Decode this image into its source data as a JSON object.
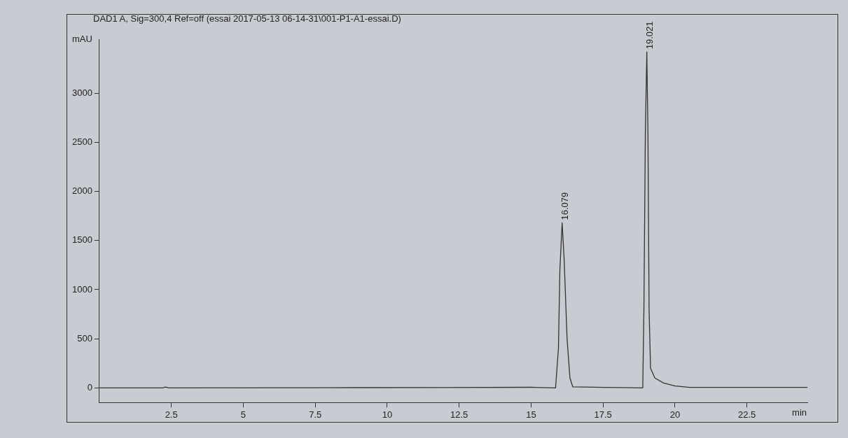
{
  "chart_data": {
    "type": "line",
    "title": "DAD1 A, Sig=300,4 Ref=off (essai 2017-05-13 06-14-31\\001-P1-A1-essai.D)",
    "xlabel": "min",
    "ylabel": "mAU",
    "x": [
      0,
      2.2,
      2.3,
      2.4,
      8,
      12,
      15,
      15.85,
      15.95,
      16.0,
      16.079,
      16.15,
      16.25,
      16.35,
      16.45,
      17.5,
      18.88,
      18.92,
      18.97,
      19.021,
      19.06,
      19.1,
      19.15,
      19.3,
      19.6,
      20.0,
      20.5,
      22.5,
      24.6
    ],
    "series": [
      {
        "color": "#333333",
        "values": [
          0,
          0,
          8,
          0,
          2,
          4,
          6,
          0,
          400,
          1200,
          1680,
          1300,
          500,
          100,
          10,
          5,
          0,
          800,
          2600,
          3420,
          2600,
          800,
          200,
          100,
          50,
          20,
          5,
          5,
          5
        ]
      }
    ],
    "annotations": [
      {
        "text": "16.079",
        "x": 16.079,
        "y": 1680
      },
      {
        "text": "19.021",
        "x": 19.021,
        "y": 3420
      }
    ],
    "xlim": [
      0,
      24.6
    ],
    "xticks": [
      2.5,
      5,
      7.5,
      10,
      12.5,
      15,
      17.5,
      20,
      22.5
    ],
    "ylim": [
      -150,
      3550
    ],
    "yticks": [
      0,
      500,
      1000,
      1500,
      2000,
      2500,
      3000
    ],
    "grid": false,
    "legend": false,
    "marker": "none",
    "line_style": "solid"
  }
}
